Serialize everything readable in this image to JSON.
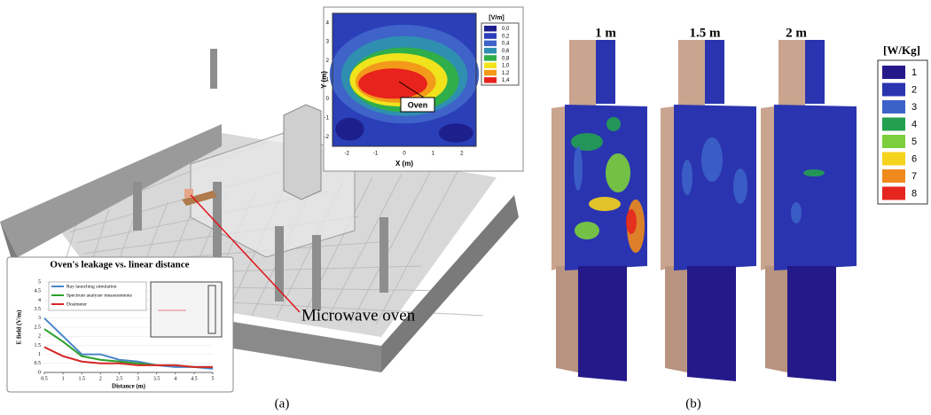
{
  "figure": {
    "panel_a": {
      "label": "(a)",
      "callout": "Microwave oven",
      "heatmap": {
        "unit": "[V/m]",
        "levels": [
          "0,0",
          "0,2",
          "0,4",
          "0,6",
          "0,8",
          "1,0",
          "1,2",
          "1,4"
        ],
        "level_colors": [
          "#1d1f8c",
          "#2a3fb8",
          "#3f63c9",
          "#2f8fb0",
          "#2fae4a",
          "#f0e31c",
          "#f39a1a",
          "#e8221c"
        ],
        "marker": "Oven",
        "x_label": "X (m)",
        "y_label": "Y (m)",
        "xlim": [
          -2.5,
          2.5
        ],
        "xticks": [
          -2,
          -1,
          0,
          1,
          2
        ],
        "ylim": [
          -2.5,
          4.5
        ],
        "yticks": [
          -2,
          -1,
          0,
          1,
          2,
          3,
          4
        ]
      },
      "leakage_chart": {
        "type": "line",
        "title": "Oven's leakage vs. linear distance",
        "x_label": "Distance (m)",
        "y_label": "E field (V/m)",
        "xlim": [
          0.5,
          5
        ],
        "xticks": [
          0.5,
          1,
          1.5,
          2,
          2.5,
          3,
          3.5,
          4,
          4.5,
          5
        ],
        "ylim": [
          0,
          5
        ],
        "yticks": [
          0,
          0.5,
          1,
          1.5,
          2,
          2.5,
          3,
          3.5,
          4,
          4.5,
          5
        ],
        "x": [
          0.5,
          1,
          1.5,
          2,
          2.5,
          3,
          3.5,
          4,
          4.5,
          5
        ],
        "series": [
          {
            "name": "Ray launching simulation",
            "color": "#4a86c8",
            "values": [
              3.0,
              2.0,
              1.0,
              1.0,
              0.7,
              0.6,
              0.4,
              0.3,
              0.3,
              0.2
            ]
          },
          {
            "name": "Spectrum analyzer measurements",
            "color": "#2ca02c",
            "values": [
              2.4,
              1.7,
              0.9,
              0.7,
              0.6,
              0.5,
              0.4,
              0.4,
              0.3,
              0.3
            ]
          },
          {
            "name": "Dosimeter",
            "color": "#d62728",
            "values": [
              1.4,
              0.9,
              0.6,
              0.5,
              0.5,
              0.4,
              0.4,
              0.4,
              0.3,
              0.3
            ]
          }
        ]
      }
    },
    "panel_b": {
      "label": "(b)",
      "distances": [
        "1 m",
        "1.5 m",
        "2 m"
      ],
      "unit": "[W/Kg]",
      "levels": [
        1,
        2,
        3,
        4,
        5,
        6,
        7,
        8
      ],
      "level_colors": [
        "#25198a",
        "#2a34b0",
        "#3c62c8",
        "#22a050",
        "#7ccf3c",
        "#f5d21c",
        "#f08a1c",
        "#e6261e"
      ]
    }
  }
}
